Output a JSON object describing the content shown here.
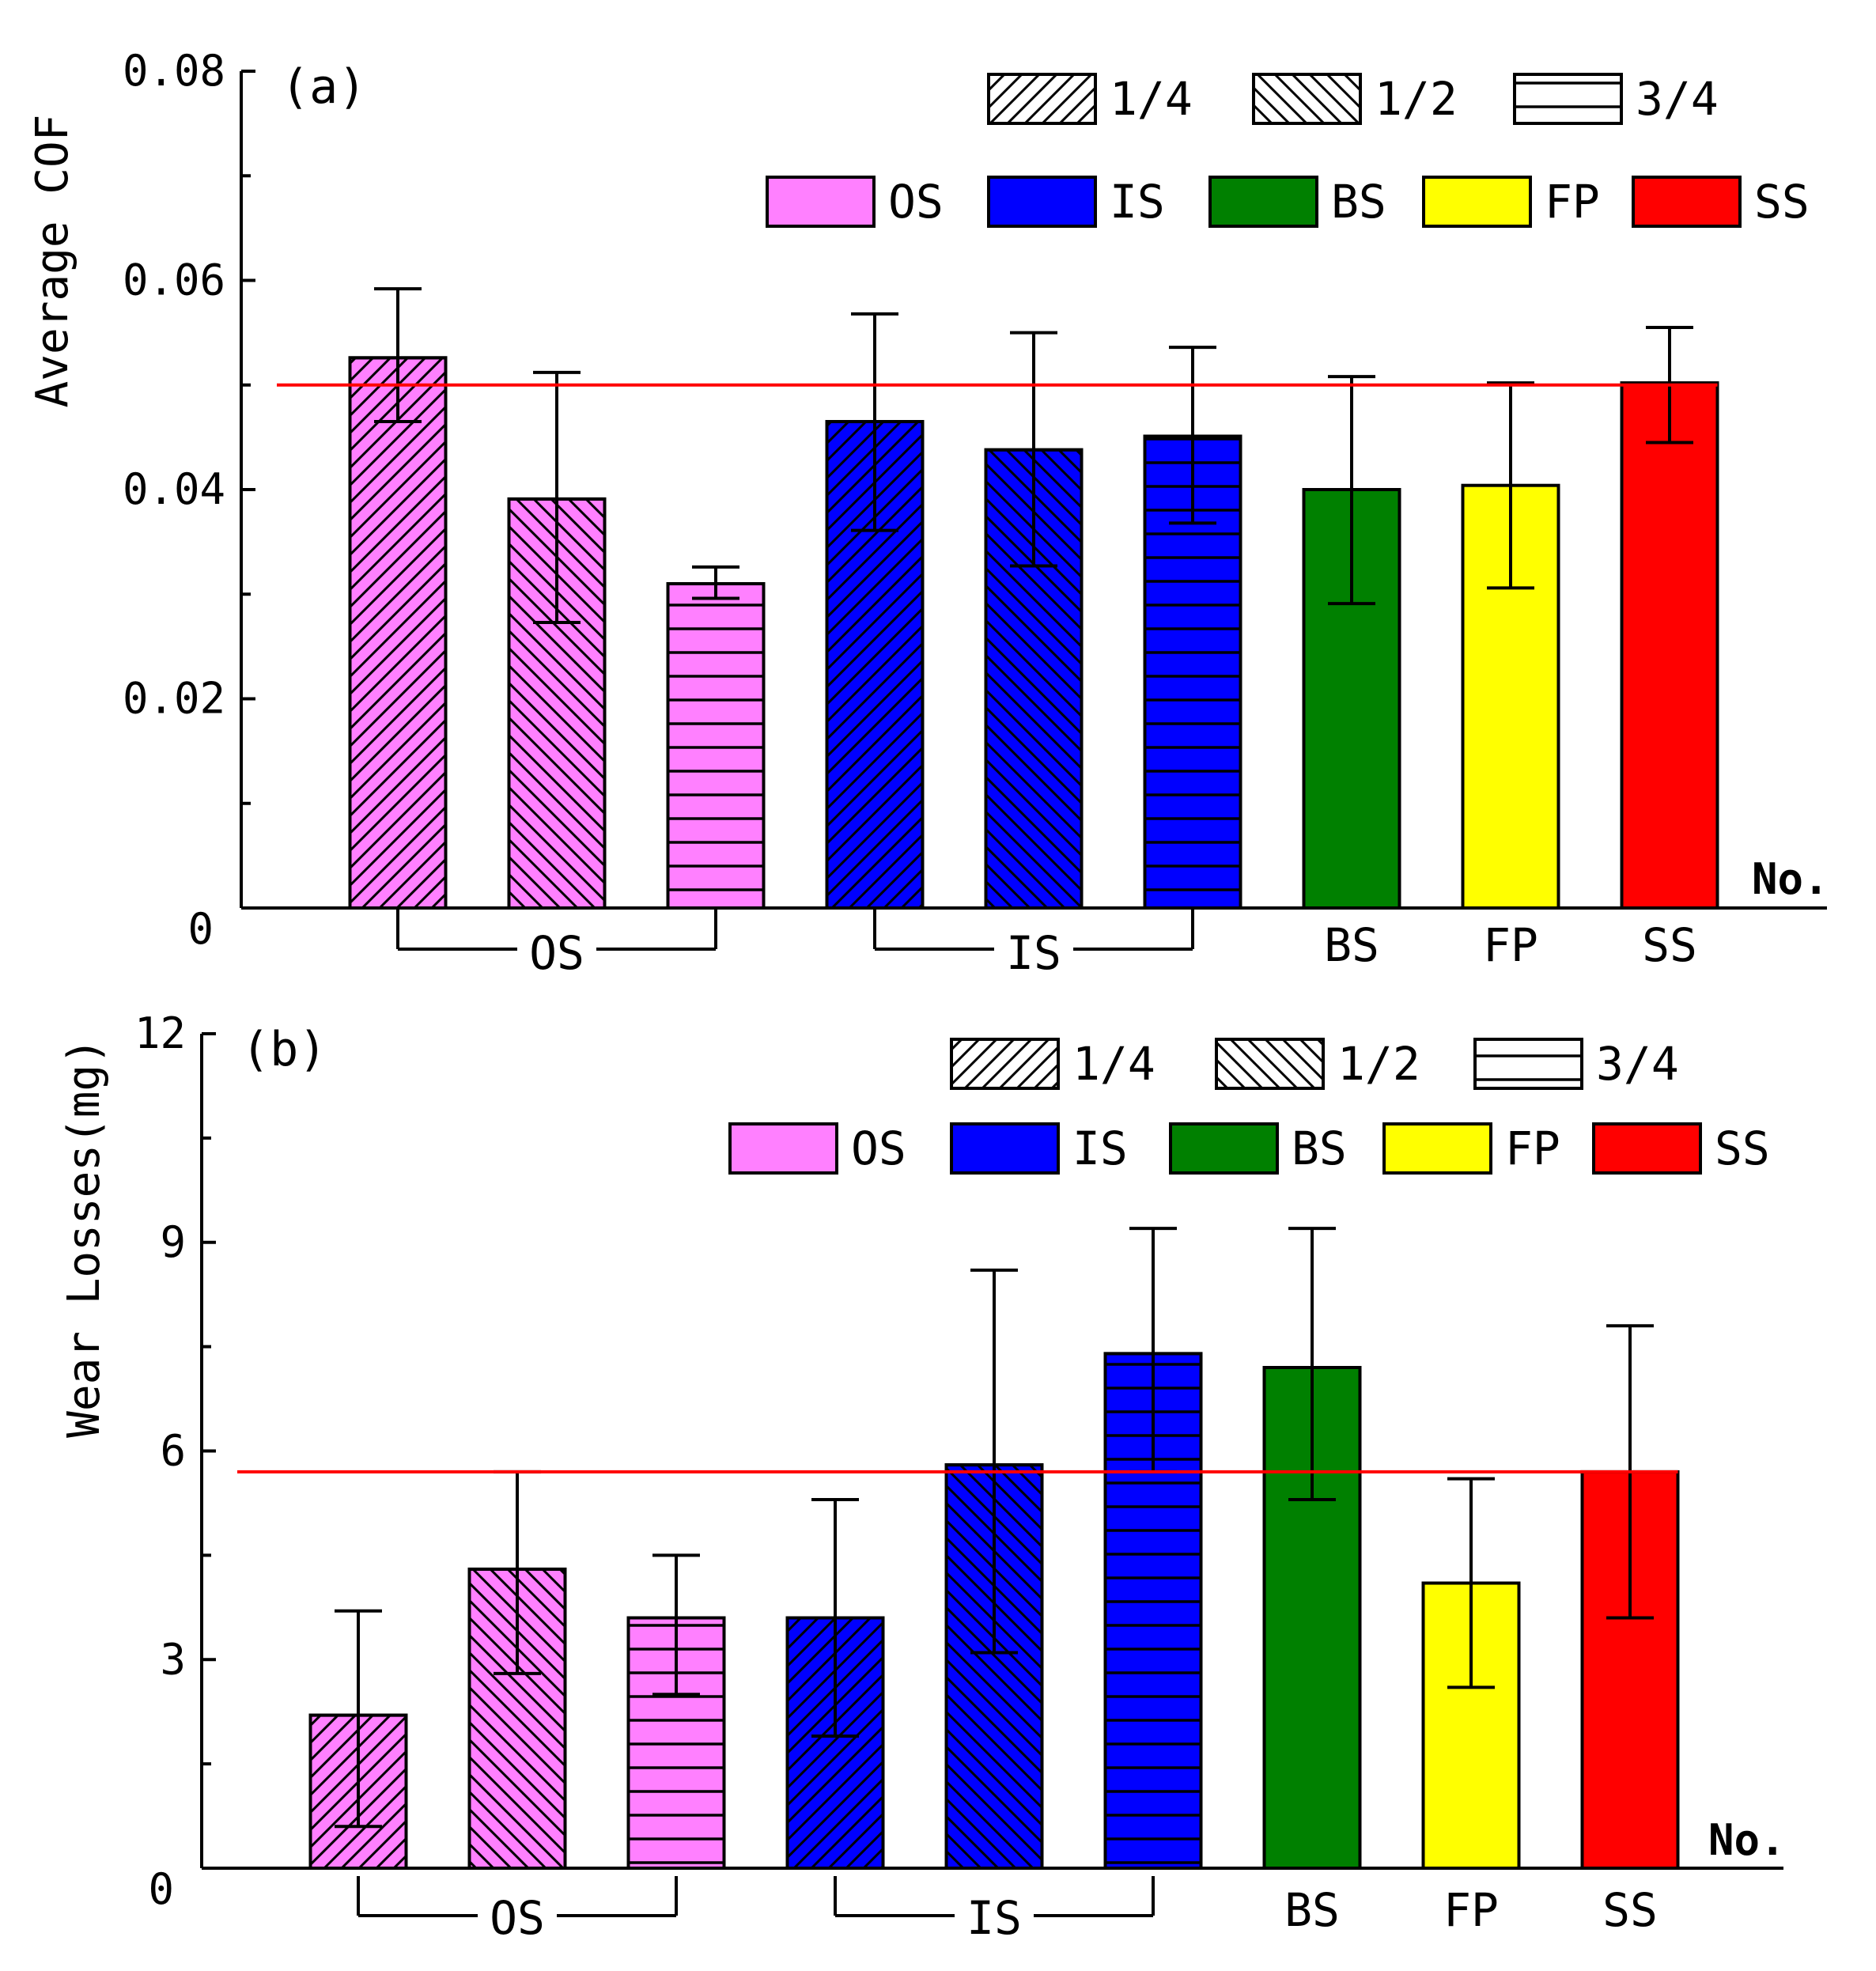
{
  "colors": {
    "OS": "#ff80ff",
    "IS": "#0000ff",
    "BS": "#008000",
    "FP": "#ffff00",
    "SS": "#ff0000",
    "refline": "#ff0000"
  },
  "legend": {
    "patterns": [
      {
        "key": "diag-fwd",
        "label": "1/4"
      },
      {
        "key": "diag-back",
        "label": "1/2"
      },
      {
        "key": "horiz",
        "label": "3/4"
      }
    ],
    "colors": [
      {
        "key": "OS",
        "label": "OS"
      },
      {
        "key": "IS",
        "label": "IS"
      },
      {
        "key": "BS",
        "label": "BS"
      },
      {
        "key": "FP",
        "label": "FP"
      },
      {
        "key": "SS",
        "label": "SS"
      }
    ]
  },
  "groups": [
    {
      "label": "OS",
      "bars": [
        0,
        1,
        2
      ]
    },
    {
      "label": "IS",
      "bars": [
        3,
        4,
        5
      ]
    }
  ],
  "single_labels": [
    {
      "label": "BS",
      "bar": 6
    },
    {
      "label": "FP",
      "bar": 7
    },
    {
      "label": "SS",
      "bar": 8
    }
  ],
  "x_end_label": "No.",
  "chart_data": [
    {
      "type": "bar",
      "panel_label": "(a)",
      "ylabel": "Average COF",
      "ylim": [
        0,
        0.08
      ],
      "yticks": [
        0,
        0.02,
        0.04,
        0.06,
        0.08
      ],
      "ytick_labels": [
        "0",
        "0.02",
        "0.04",
        "0.06",
        "0.08"
      ],
      "reference_line": 0.05,
      "bars": [
        {
          "color": "OS",
          "pattern": "diag-fwd",
          "value": 0.0526,
          "err_low": 0.0465,
          "err_high": 0.0592
        },
        {
          "color": "OS",
          "pattern": "diag-back",
          "value": 0.0391,
          "err_low": 0.0273,
          "err_high": 0.0512
        },
        {
          "color": "OS",
          "pattern": "horiz",
          "value": 0.031,
          "err_low": 0.0296,
          "err_high": 0.0326
        },
        {
          "color": "IS",
          "pattern": "diag-fwd",
          "value": 0.0465,
          "err_low": 0.0361,
          "err_high": 0.0568
        },
        {
          "color": "IS",
          "pattern": "diag-back",
          "value": 0.0438,
          "err_low": 0.0327,
          "err_high": 0.055
        },
        {
          "color": "IS",
          "pattern": "horiz",
          "value": 0.0451,
          "err_low": 0.0368,
          "err_high": 0.0536
        },
        {
          "color": "BS",
          "pattern": "none",
          "value": 0.04,
          "err_low": 0.0291,
          "err_high": 0.0508
        },
        {
          "color": "FP",
          "pattern": "none",
          "value": 0.0404,
          "err_low": 0.0306,
          "err_high": 0.0502
        },
        {
          "color": "SS",
          "pattern": "none",
          "value": 0.0502,
          "err_low": 0.0445,
          "err_high": 0.0555
        }
      ]
    },
    {
      "type": "bar",
      "panel_label": "(b)",
      "ylabel": "Wear Losses(mg)",
      "ylim": [
        0,
        12
      ],
      "yticks": [
        0,
        3,
        6,
        9,
        12
      ],
      "ytick_labels": [
        "0",
        "3",
        "6",
        "9",
        "12"
      ],
      "reference_line": 5.7,
      "bars": [
        {
          "color": "OS",
          "pattern": "diag-fwd",
          "value": 2.2,
          "err_low": 0.6,
          "err_high": 3.7
        },
        {
          "color": "OS",
          "pattern": "diag-back",
          "value": 4.3,
          "err_low": 2.8,
          "err_high": 5.7
        },
        {
          "color": "OS",
          "pattern": "horiz",
          "value": 3.6,
          "err_low": 2.5,
          "err_high": 4.5
        },
        {
          "color": "IS",
          "pattern": "diag-fwd",
          "value": 3.6,
          "err_low": 1.9,
          "err_high": 5.3
        },
        {
          "color": "IS",
          "pattern": "diag-back",
          "value": 5.8,
          "err_low": 3.1,
          "err_high": 8.6
        },
        {
          "color": "IS",
          "pattern": "horiz",
          "value": 7.4,
          "err_low": 5.7,
          "err_high": 9.2
        },
        {
          "color": "BS",
          "pattern": "none",
          "value": 7.2,
          "err_low": 5.3,
          "err_high": 9.2
        },
        {
          "color": "FP",
          "pattern": "none",
          "value": 4.1,
          "err_low": 2.6,
          "err_high": 5.6
        },
        {
          "color": "SS",
          "pattern": "none",
          "value": 5.7,
          "err_low": 3.6,
          "err_high": 7.8
        }
      ]
    }
  ]
}
